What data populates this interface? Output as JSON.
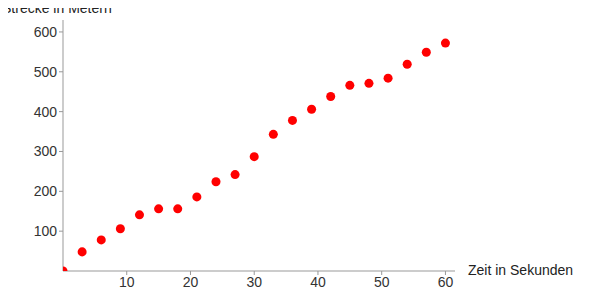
{
  "chart_data": {
    "type": "scatter",
    "x_label": "Zeit in Sekunden",
    "y_label": "Strecke in Metern",
    "x": [
      0,
      3,
      6,
      9,
      12,
      15,
      18,
      21,
      24,
      27,
      30,
      33,
      36,
      39,
      42,
      45,
      48,
      51,
      54,
      57,
      60
    ],
    "values": [
      0,
      48,
      78,
      106,
      141,
      156,
      156,
      186,
      224,
      242,
      287,
      343,
      378,
      406,
      438,
      466,
      471,
      484,
      519,
      549,
      572
    ],
    "color": "#ff0000",
    "marker": "circle",
    "xlim": [
      0,
      61.5
    ],
    "ylim": [
      0,
      630
    ],
    "xticks": [
      10,
      20,
      30,
      40,
      50,
      60
    ],
    "yticks": [
      100,
      200,
      300,
      400,
      500,
      600
    ],
    "grid": false
  }
}
